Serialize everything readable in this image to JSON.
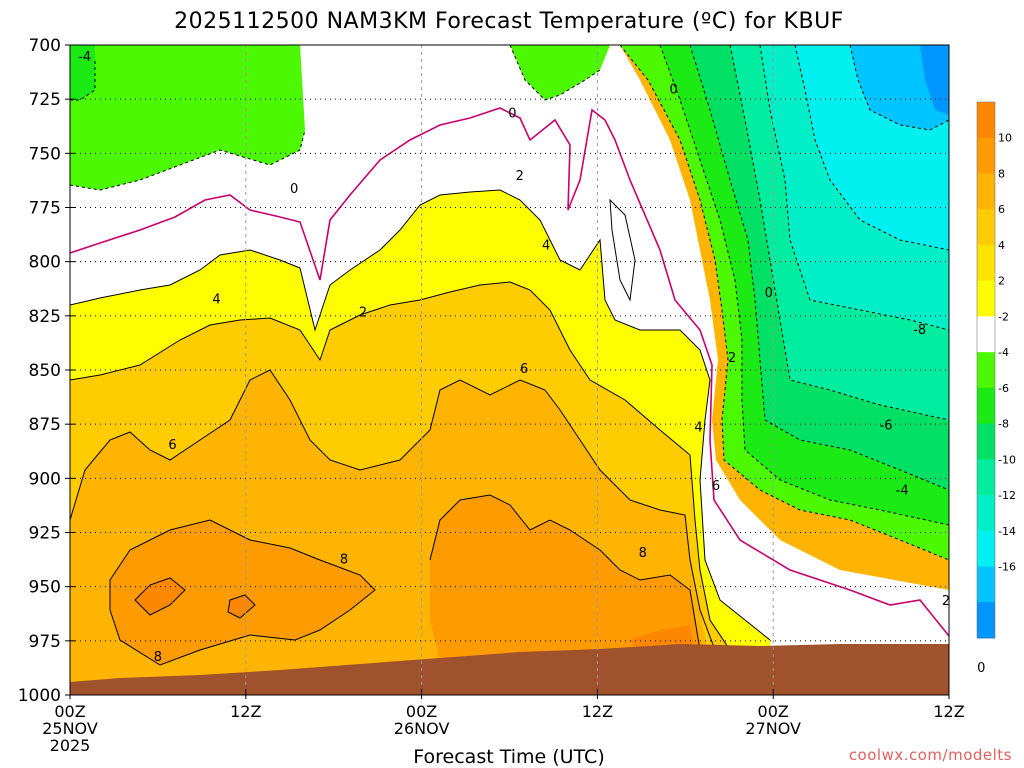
{
  "chart_data": {
    "type": "contour",
    "title": "2025112500 NAM3KM Forecast Temperature (ºC) for KBUF",
    "xlabel": "Forecast Time (UTC)",
    "x_ticks": [
      {
        "hour": 0,
        "lines": [
          "00Z",
          "25NOV",
          "2025"
        ]
      },
      {
        "hour": 12,
        "lines": [
          "12Z"
        ]
      },
      {
        "hour": 24,
        "lines": [
          "00Z",
          "26NOV"
        ]
      },
      {
        "hour": 36,
        "lines": [
          "12Z"
        ]
      },
      {
        "hour": 48,
        "lines": [
          "00Z",
          "27NOV"
        ]
      },
      {
        "hour": 60,
        "lines": [
          "12Z"
        ]
      }
    ],
    "x_range_hours": [
      0,
      60
    ],
    "y_ticks": [
      700,
      725,
      750,
      775,
      800,
      825,
      850,
      875,
      900,
      925,
      950,
      975,
      1000
    ],
    "y_range_hpa": [
      700,
      1000
    ],
    "y_inverted": true,
    "grid": true,
    "colorbar_labels": [
      "10",
      "8",
      "6",
      "4",
      "2",
      "-2",
      "-4",
      "-6",
      "-8",
      "-10",
      "-12",
      "-14",
      "-16"
    ],
    "colors": {
      "gt10": "#fe8700",
      "c8_10": "#fe9b00",
      "c6_8": "#feb400",
      "c4_6": "#fecc00",
      "c2_4": "#ffe300",
      "c0_2": "#fffe00",
      "cm2_2": "#ffffff",
      "cm4_m2": "#4cf802",
      "cm6_m4": "#1bea14",
      "cm8_m6": "#00e064",
      "cm10_m8": "#00ec9f",
      "cm12_m10": "#00efc8",
      "cm14_m12": "#00f0f0",
      "cm16_m14": "#00c4ff",
      "lt_m16": "#0096ff",
      "ground": "#a0522d",
      "freezing_line": "#c8006e"
    },
    "contour_labels": [
      {
        "text": "-4",
        "hour": 1.0,
        "hpa": 706
      },
      {
        "text": "0",
        "hour": 15.3,
        "hpa": 767
      },
      {
        "text": "0",
        "hour": 30.2,
        "hpa": 732
      },
      {
        "text": "0",
        "hour": 41.2,
        "hpa": 721
      },
      {
        "text": "0",
        "hour": 47.7,
        "hpa": 815
      },
      {
        "text": "0",
        "hour": 62.2,
        "hpa": 988
      },
      {
        "text": "2",
        "hour": 20.0,
        "hpa": 824
      },
      {
        "text": "2",
        "hour": 30.7,
        "hpa": 761
      },
      {
        "text": "2",
        "hour": 45.2,
        "hpa": 845
      },
      {
        "text": "2",
        "hour": 59.8,
        "hpa": 957
      },
      {
        "text": "4",
        "hour": 10.0,
        "hpa": 818
      },
      {
        "text": "4",
        "hour": 32.5,
        "hpa": 793
      },
      {
        "text": "4",
        "hour": 42.9,
        "hpa": 877
      },
      {
        "text": "6",
        "hour": 7.0,
        "hpa": 885
      },
      {
        "text": "6",
        "hour": 31.0,
        "hpa": 850
      },
      {
        "text": "6",
        "hour": 44.1,
        "hpa": 904
      },
      {
        "text": "8",
        "hour": 18.7,
        "hpa": 938
      },
      {
        "text": "8",
        "hour": 6.0,
        "hpa": 983
      },
      {
        "text": "8",
        "hour": 39.1,
        "hpa": 935
      },
      {
        "text": "-4",
        "hour": 56.8,
        "hpa": 906
      },
      {
        "text": "-6",
        "hour": 55.7,
        "hpa": 876
      },
      {
        "text": "-8",
        "hour": 58.0,
        "hpa": 832
      }
    ]
  },
  "credit": "coolwx.com/modelts"
}
